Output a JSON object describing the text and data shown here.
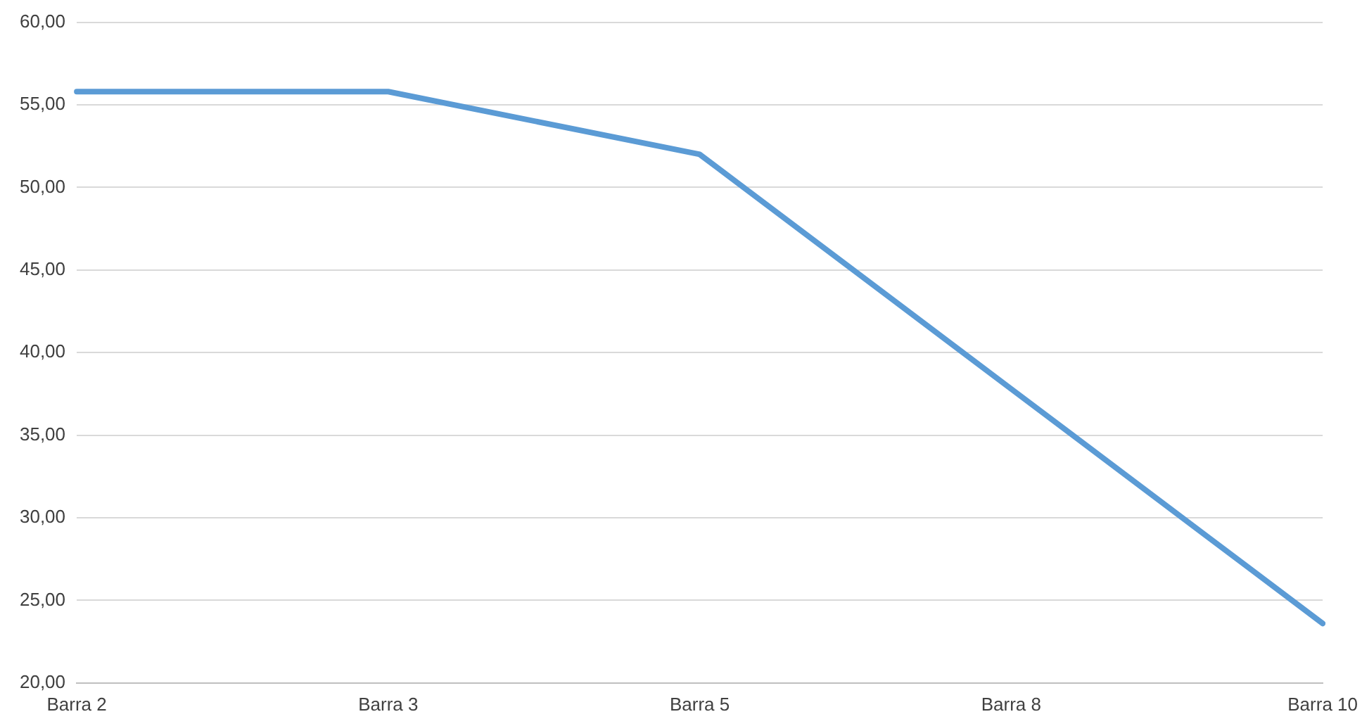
{
  "chart_data": {
    "type": "line",
    "categories": [
      "Barra 2",
      "Barra 3",
      "Barra 5",
      "Barra 8",
      "Barra 10"
    ],
    "series": [
      {
        "color": "#5b9bd5",
        "values": [
          55.8,
          55.8,
          52.0,
          37.8,
          23.6
        ]
      }
    ],
    "ylim": [
      20,
      60
    ],
    "yticks": [
      {
        "value": 20,
        "label": "20,00"
      },
      {
        "value": 25,
        "label": "25,00"
      },
      {
        "value": 30,
        "label": "30,00"
      },
      {
        "value": 35,
        "label": "35,00"
      },
      {
        "value": 40,
        "label": "40,00"
      },
      {
        "value": 45,
        "label": "45,00"
      },
      {
        "value": 50,
        "label": "50,00"
      },
      {
        "value": 55,
        "label": "55,00"
      },
      {
        "value": 60,
        "label": "60,00"
      }
    ],
    "grid": "y",
    "legend": false,
    "marker": "none",
    "line_style": "solid"
  }
}
